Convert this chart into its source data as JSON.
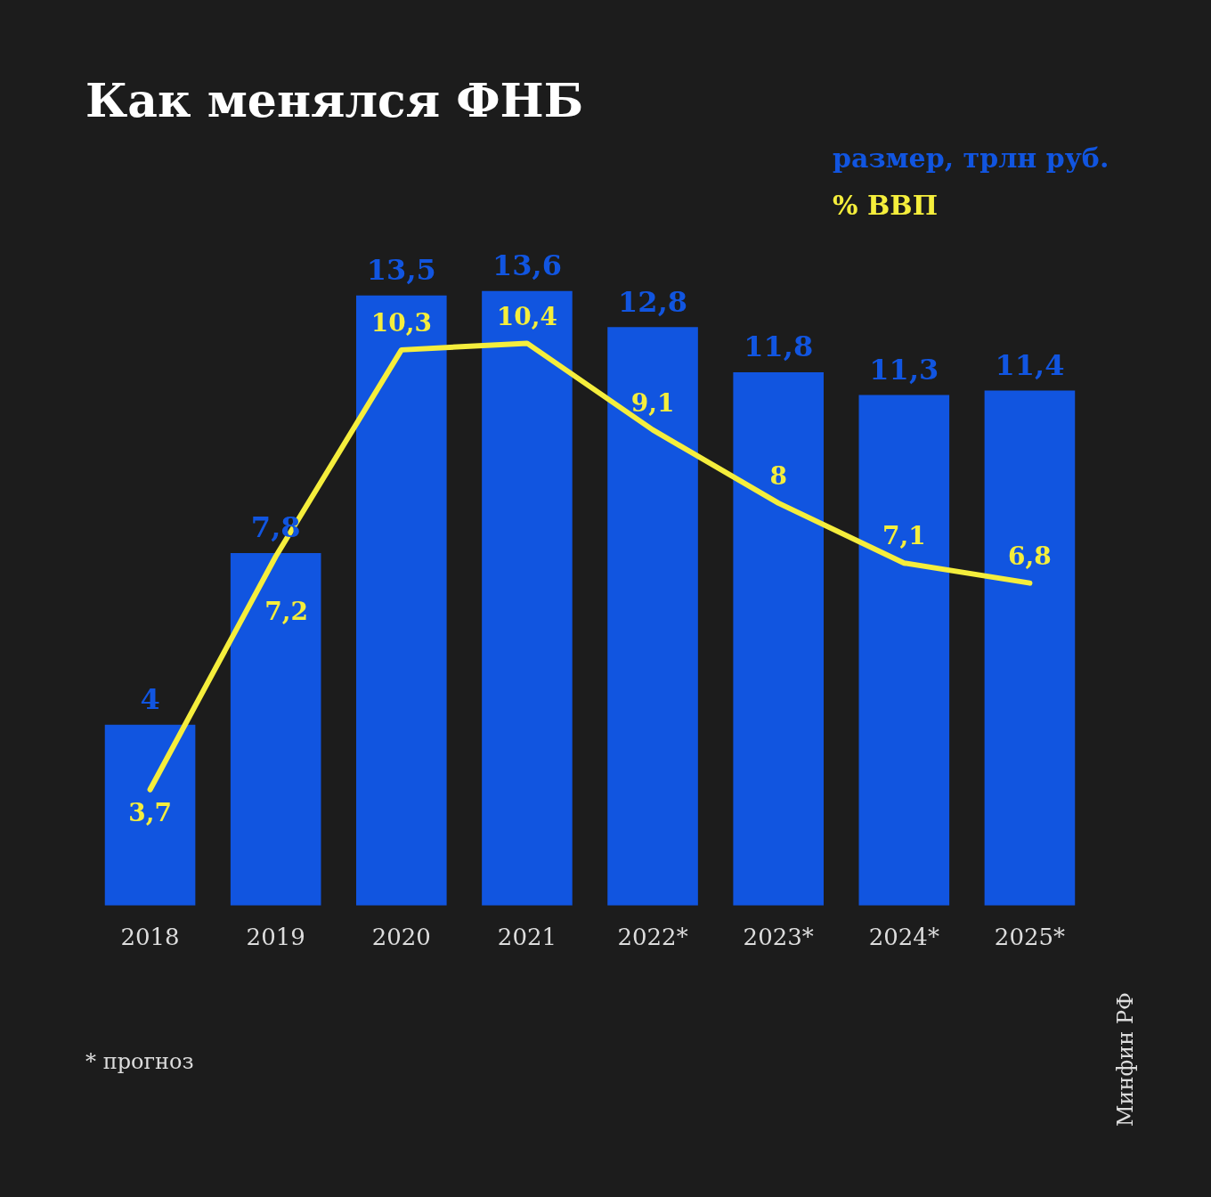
{
  "chart_data": {
    "type": "bar",
    "title": "Как менялся ФНБ",
    "categories": [
      "2018",
      "2019",
      "2020",
      "2021",
      "2022*",
      "2023*",
      "2024*",
      "2025*"
    ],
    "series": [
      {
        "name": "размер, трлн руб.",
        "color": "#1155e0",
        "values": [
          4,
          7.8,
          13.5,
          13.6,
          12.8,
          11.8,
          11.3,
          11.4
        ],
        "value_labels": [
          "4",
          "7,8",
          "13,5",
          "13,6",
          "12,8",
          "11,8",
          "11,3",
          "11,4"
        ]
      },
      {
        "name": "% ВВП",
        "type": "line",
        "axis": "y2",
        "color": "#f5ee3c",
        "values": [
          3.7,
          7.2,
          10.3,
          10.4,
          9.1,
          8,
          7.1,
          6.8
        ],
        "value_labels": [
          "3,7",
          "7,2",
          "10,3",
          "10,4",
          "9,1",
          "8",
          "7,1",
          "6,8"
        ]
      }
    ],
    "tick_labels": "x",
    "grid": false,
    "legend": "top right",
    "marker": "none",
    "line_style": "solid",
    "annotations": [
      "* прогноз",
      "Минфин РФ"
    ]
  }
}
